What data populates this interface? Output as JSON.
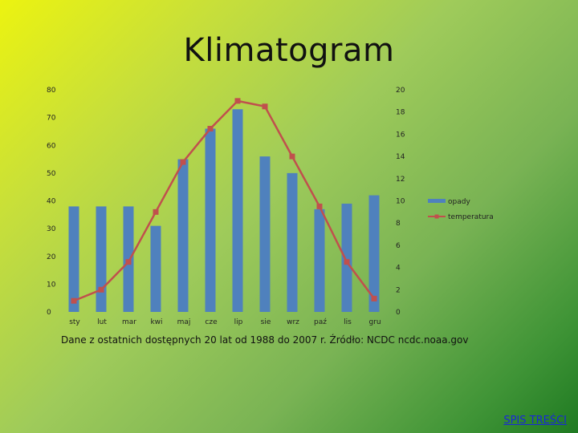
{
  "slide": {
    "title": "Klimatogram",
    "caption": "Dane z ostatnich dostępnych 20 lat od 1988 do 2007 r. Źródło: NCDC ncdc.noaa.gov",
    "nav_link": "SPIS TREŚCI"
  },
  "chart_data": {
    "type": "bar",
    "categories": [
      "sty",
      "lut",
      "mar",
      "kwi",
      "maj",
      "cze",
      "lip",
      "sie",
      "wrz",
      "paź",
      "lis",
      "gru"
    ],
    "series": [
      {
        "name": "opady",
        "type": "bar",
        "axis": "left",
        "color": "#4f81bd",
        "values": [
          38,
          38,
          38,
          31,
          55,
          66,
          73,
          56,
          50,
          37,
          39,
          42
        ]
      },
      {
        "name": "temperatura",
        "type": "line",
        "axis": "right",
        "color": "#c0504d",
        "values": [
          1,
          2,
          4.5,
          9,
          13.5,
          16.5,
          19,
          18.5,
          14,
          9.5,
          4.5,
          1.2
        ]
      }
    ],
    "y_left": {
      "range": [
        0,
        80
      ],
      "ticks": [
        0,
        10,
        20,
        30,
        40,
        50,
        60,
        70,
        80
      ]
    },
    "y_right": {
      "range": [
        0,
        20
      ],
      "ticks": [
        0,
        2,
        4,
        6,
        8,
        10,
        12,
        14,
        16,
        18,
        20
      ]
    },
    "grid": false,
    "legend": "right"
  }
}
